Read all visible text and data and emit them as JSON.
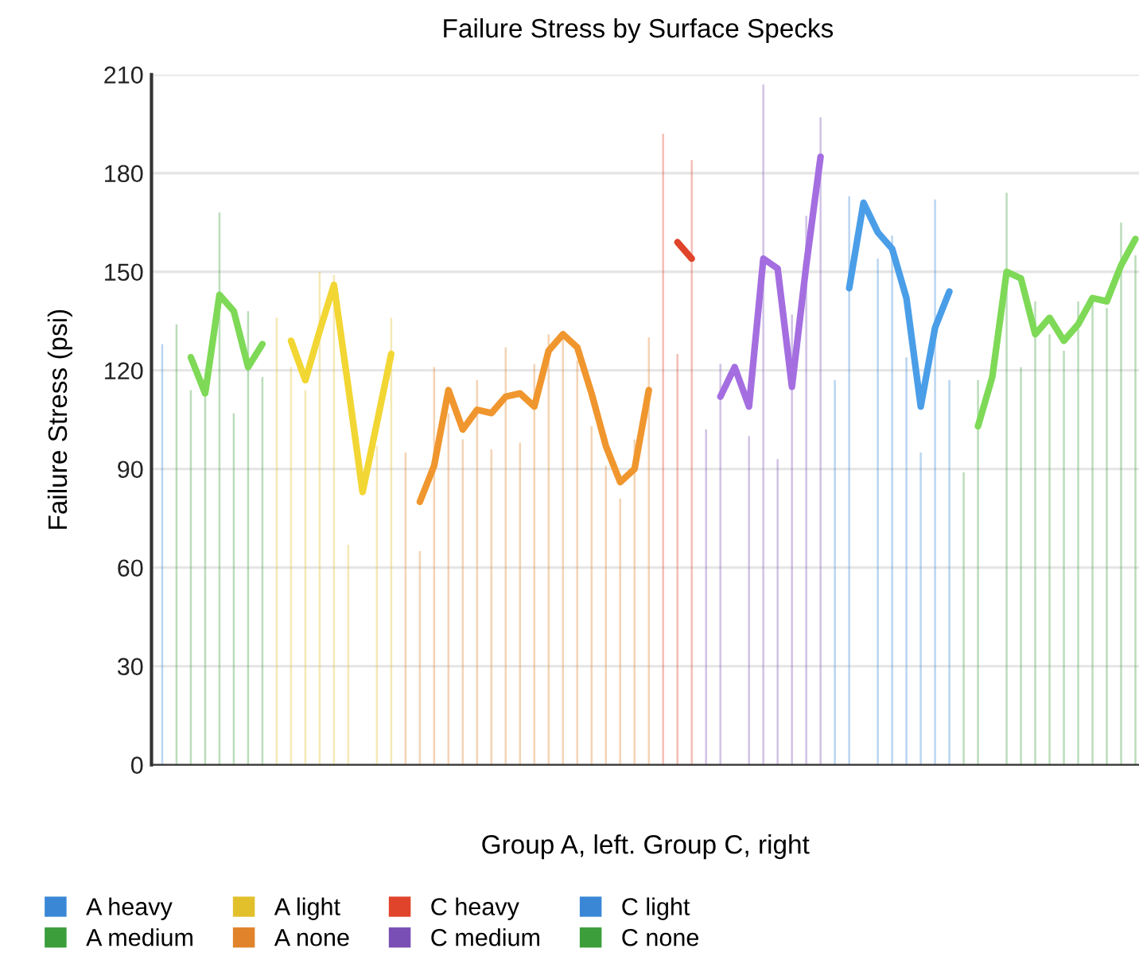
{
  "chart_data": {
    "type": "bar",
    "title": "Failure Stress by Surface Specks",
    "xlabel": "Group A, left. Group C, right",
    "ylabel": "Failure Stress (psi)",
    "categories": [
      null,
      null,
      null,
      null,
      null,
      null,
      null,
      null,
      null,
      null,
      null,
      null,
      null,
      null,
      null,
      null,
      null,
      null,
      null,
      null,
      null,
      null,
      null,
      null,
      null,
      null,
      null,
      null,
      null,
      null,
      null,
      null,
      null,
      null,
      null,
      null,
      null,
      null,
      null,
      null,
      null,
      null,
      null,
      null,
      null,
      null,
      null,
      null,
      null,
      null,
      null,
      null,
      null,
      null,
      null,
      null,
      null,
      null,
      null,
      null,
      null,
      null,
      null,
      null,
      null,
      null,
      null,
      null,
      null
    ],
    "ylim": [
      0,
      210
    ],
    "yticks": [
      0,
      30,
      60,
      90,
      120,
      150,
      180,
      210
    ],
    "grid": "y",
    "legend": "bottom",
    "line_style": "solid",
    "marker": "none",
    "series": [
      {
        "name": "A heavy",
        "color": "#3a87d6",
        "values": [
          128,
          null,
          null,
          null,
          null,
          null,
          null,
          null,
          null,
          null,
          null,
          null,
          null,
          null,
          null,
          null,
          null,
          null,
          null,
          null,
          null,
          null,
          null,
          null,
          null,
          null,
          null,
          null,
          null,
          null,
          null,
          null,
          null,
          null,
          null,
          null,
          null,
          null,
          null,
          null,
          null,
          null,
          null,
          null,
          null,
          null,
          null,
          null,
          null,
          null,
          null,
          null,
          null,
          null,
          null,
          null,
          null,
          null,
          null,
          null,
          null,
          null,
          null,
          null,
          null,
          null,
          null,
          null,
          null
        ]
      },
      {
        "name": "A medium",
        "color": "#3b9e3b",
        "values": [
          null,
          134,
          114,
          112,
          168,
          107,
          138,
          118,
          null,
          null,
          null,
          null,
          null,
          null,
          null,
          null,
          null,
          null,
          null,
          null,
          null,
          null,
          null,
          null,
          null,
          null,
          null,
          null,
          null,
          null,
          null,
          null,
          null,
          null,
          null,
          null,
          null,
          null,
          null,
          null,
          null,
          null,
          null,
          null,
          null,
          null,
          null,
          null,
          null,
          null,
          null,
          null,
          null,
          null,
          null,
          null,
          null,
          null,
          null,
          null,
          null,
          null,
          null,
          null,
          null,
          null,
          null,
          null,
          null
        ]
      },
      {
        "name": "A light",
        "color": "#e2c02c",
        "values": [
          null,
          null,
          null,
          null,
          null,
          null,
          null,
          null,
          136,
          121,
          114,
          150,
          149,
          67,
          null,
          97,
          136,
          null,
          null,
          null,
          null,
          null,
          null,
          null,
          null,
          null,
          null,
          null,
          null,
          null,
          null,
          null,
          null,
          null,
          null,
          null,
          null,
          null,
          null,
          null,
          null,
          null,
          null,
          null,
          null,
          null,
          null,
          null,
          null,
          null,
          null,
          null,
          null,
          null,
          null,
          null,
          null,
          null,
          null,
          null,
          null,
          null,
          null,
          null,
          null,
          null,
          null,
          null,
          null
        ]
      },
      {
        "name": "A none",
        "color": "#e0832a",
        "values": [
          null,
          null,
          null,
          null,
          null,
          null,
          null,
          null,
          null,
          null,
          null,
          null,
          null,
          null,
          null,
          null,
          null,
          95,
          65,
          121,
          107,
          99,
          117,
          96,
          127,
          98,
          122,
          131,
          131,
          123,
          103,
          91,
          81,
          99,
          130,
          null,
          null,
          null,
          null,
          null,
          null,
          null,
          null,
          null,
          null,
          null,
          null,
          null,
          null,
          null,
          null,
          null,
          null,
          null,
          null,
          null,
          null,
          null,
          null,
          null,
          null,
          null,
          null,
          null,
          null,
          null,
          null,
          null,
          null
        ]
      },
      {
        "name": "C heavy",
        "color": "#e0442a",
        "values": [
          null,
          null,
          null,
          null,
          null,
          null,
          null,
          null,
          null,
          null,
          null,
          null,
          null,
          null,
          null,
          null,
          null,
          null,
          null,
          null,
          null,
          null,
          null,
          null,
          null,
          null,
          null,
          null,
          null,
          null,
          null,
          null,
          null,
          null,
          null,
          192,
          125,
          184,
          null,
          null,
          null,
          null,
          null,
          null,
          null,
          null,
          null,
          null,
          null,
          null,
          null,
          null,
          null,
          null,
          null,
          null,
          null,
          null,
          null,
          null,
          null,
          null,
          null,
          null,
          null,
          null,
          null,
          null,
          null
        ]
      },
      {
        "name": "C medium",
        "color": "#7a4fb5",
        "values": [
          null,
          null,
          null,
          null,
          null,
          null,
          null,
          null,
          null,
          null,
          null,
          null,
          null,
          null,
          null,
          null,
          null,
          null,
          null,
          null,
          null,
          null,
          null,
          null,
          null,
          null,
          null,
          null,
          null,
          null,
          null,
          null,
          null,
          null,
          null,
          null,
          null,
          null,
          102,
          122,
          null,
          100,
          207,
          93,
          137,
          167,
          197,
          null,
          null,
          null,
          null,
          null,
          null,
          null,
          null,
          null,
          null,
          null,
          null,
          null,
          null,
          null,
          null,
          null,
          null,
          null,
          null,
          null,
          null
        ]
      },
      {
        "name": "C light",
        "color": "#3a87d6",
        "values": [
          null,
          null,
          null,
          null,
          null,
          null,
          null,
          null,
          null,
          null,
          null,
          null,
          null,
          null,
          null,
          null,
          null,
          null,
          null,
          null,
          null,
          null,
          null,
          null,
          null,
          null,
          null,
          null,
          null,
          null,
          null,
          null,
          null,
          null,
          null,
          null,
          null,
          null,
          null,
          null,
          null,
          null,
          null,
          null,
          null,
          null,
          null,
          117,
          173,
          null,
          154,
          161,
          124,
          95,
          172,
          117,
          null,
          null,
          null,
          null,
          null,
          null,
          null,
          null,
          null,
          null,
          null,
          null,
          null
        ]
      },
      {
        "name": "C none",
        "color": "#3b9e3b",
        "values": [
          null,
          null,
          null,
          null,
          null,
          null,
          null,
          null,
          null,
          null,
          null,
          null,
          null,
          null,
          null,
          null,
          null,
          null,
          null,
          null,
          null,
          null,
          null,
          null,
          null,
          null,
          null,
          null,
          null,
          null,
          null,
          null,
          null,
          null,
          null,
          null,
          null,
          null,
          null,
          null,
          null,
          null,
          null,
          null,
          null,
          null,
          null,
          null,
          null,
          null,
          null,
          null,
          null,
          null,
          null,
          null,
          89,
          117,
          null,
          174,
          121,
          141,
          131,
          126,
          141,
          142,
          139,
          165,
          155
        ]
      },
      {
        "type": "line",
        "color": "#7ed957",
        "values": [
          null,
          null,
          124,
          113,
          143,
          138,
          121,
          128,
          null,
          null,
          null,
          null,
          null,
          null,
          null,
          null,
          null,
          null,
          null,
          null,
          null,
          null,
          null,
          null,
          null,
          null,
          null,
          null,
          null,
          null,
          null,
          null,
          null,
          null,
          null,
          null,
          null,
          null,
          null,
          null,
          null,
          null,
          null,
          null,
          null,
          null,
          null,
          null,
          null,
          null,
          null,
          null,
          null,
          null,
          null,
          null,
          null,
          null,
          null,
          null,
          null,
          null,
          null,
          null,
          null,
          null,
          null,
          null,
          null
        ]
      },
      {
        "type": "line",
        "color": "#f2d633",
        "values": [
          null,
          null,
          null,
          null,
          null,
          null,
          null,
          null,
          null,
          129,
          117,
          132,
          146,
          115,
          83,
          104,
          125,
          null,
          null,
          null,
          null,
          null,
          null,
          null,
          null,
          null,
          null,
          null,
          null,
          null,
          null,
          null,
          null,
          null,
          null,
          null,
          null,
          null,
          null,
          null,
          null,
          null,
          null,
          null,
          null,
          null,
          null,
          null,
          null,
          null,
          null,
          null,
          null,
          null,
          null,
          null,
          null,
          null,
          null,
          null,
          null,
          null,
          null,
          null,
          null,
          null,
          null,
          null,
          null
        ]
      },
      {
        "type": "line",
        "color": "#f0962e",
        "values": [
          null,
          null,
          null,
          null,
          null,
          null,
          null,
          null,
          null,
          null,
          null,
          null,
          null,
          null,
          null,
          null,
          null,
          null,
          80,
          91,
          114,
          102,
          108,
          107,
          112,
          113,
          109,
          126,
          131,
          127,
          113,
          97,
          86,
          90,
          114,
          null,
          null,
          null,
          null,
          null,
          null,
          null,
          null,
          null,
          null,
          null,
          null,
          null,
          null,
          null,
          null,
          null,
          null,
          null,
          null,
          null,
          null,
          null,
          null,
          null,
          null,
          null,
          null,
          null,
          null,
          null,
          null,
          null,
          null
        ]
      },
      {
        "type": "line",
        "color": "#e0442a",
        "values": [
          null,
          null,
          null,
          null,
          null,
          null,
          null,
          null,
          null,
          null,
          null,
          null,
          null,
          null,
          null,
          null,
          null,
          null,
          null,
          null,
          null,
          null,
          null,
          null,
          null,
          null,
          null,
          null,
          null,
          null,
          null,
          null,
          null,
          null,
          null,
          null,
          159,
          154,
          null,
          null,
          null,
          null,
          null,
          null,
          null,
          null,
          null,
          null,
          null,
          null,
          null,
          null,
          null,
          null,
          null,
          null,
          null,
          null,
          null,
          null,
          null,
          null,
          null,
          null,
          null,
          null,
          null,
          null,
          null
        ]
      },
      {
        "type": "line",
        "color": "#a46ee0",
        "values": [
          null,
          null,
          null,
          null,
          null,
          null,
          null,
          null,
          null,
          null,
          null,
          null,
          null,
          null,
          null,
          null,
          null,
          null,
          null,
          null,
          null,
          null,
          null,
          null,
          null,
          null,
          null,
          null,
          null,
          null,
          null,
          null,
          null,
          null,
          null,
          null,
          null,
          null,
          null,
          112,
          121,
          109,
          154,
          151,
          115,
          152,
          185,
          null,
          null,
          null,
          null,
          null,
          null,
          null,
          null,
          null,
          null,
          null,
          null,
          null,
          null,
          null,
          null,
          null,
          null,
          null,
          null,
          null,
          null
        ]
      },
      {
        "type": "line",
        "color": "#4a9ee8",
        "values": [
          null,
          null,
          null,
          null,
          null,
          null,
          null,
          null,
          null,
          null,
          null,
          null,
          null,
          null,
          null,
          null,
          null,
          null,
          null,
          null,
          null,
          null,
          null,
          null,
          null,
          null,
          null,
          null,
          null,
          null,
          null,
          null,
          null,
          null,
          null,
          null,
          null,
          null,
          null,
          null,
          null,
          null,
          null,
          null,
          null,
          null,
          null,
          null,
          145,
          171,
          162,
          157,
          142,
          109,
          133,
          144,
          null,
          null,
          null,
          null,
          null,
          null,
          null,
          null,
          null,
          null,
          null,
          null,
          null
        ]
      },
      {
        "type": "line",
        "color": "#7ed957",
        "values": [
          null,
          null,
          null,
          null,
          null,
          null,
          null,
          null,
          null,
          null,
          null,
          null,
          null,
          null,
          null,
          null,
          null,
          null,
          null,
          null,
          null,
          null,
          null,
          null,
          null,
          null,
          null,
          null,
          null,
          null,
          null,
          null,
          null,
          null,
          null,
          null,
          null,
          null,
          null,
          null,
          null,
          null,
          null,
          null,
          null,
          null,
          null,
          null,
          null,
          null,
          null,
          null,
          null,
          null,
          null,
          null,
          null,
          103,
          118,
          150,
          148,
          131,
          136,
          129,
          134,
          142,
          141,
          152,
          160
        ]
      }
    ]
  }
}
